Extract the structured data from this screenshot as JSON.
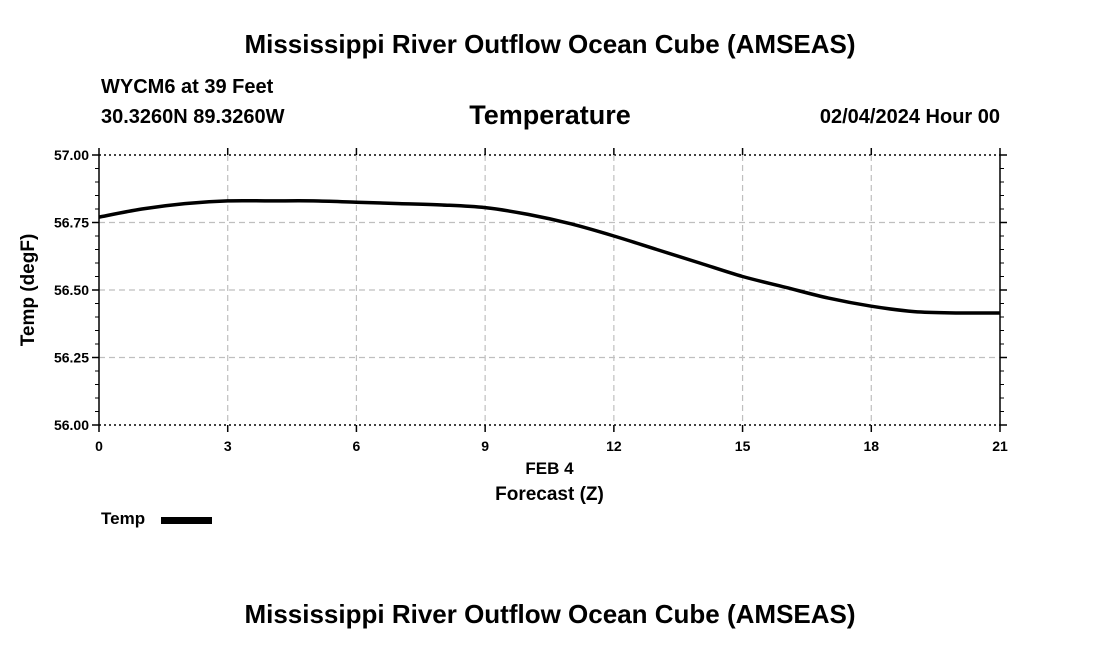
{
  "header": {
    "title": "Mississippi River Outflow Ocean Cube (AMSEAS)",
    "station": "WYCM6 at 39 Feet",
    "coords": "30.3260N  89.3260W",
    "variable": "Temperature",
    "datetime": "02/04/2024 Hour 00"
  },
  "footer": {
    "title": "Mississippi River Outflow Ocean Cube (AMSEAS)"
  },
  "legend": {
    "label": "Temp",
    "color": "#000000"
  },
  "chart_data": {
    "type": "line",
    "ylabel": "Temp (degF)",
    "xlabel": "Forecast (Z)",
    "x_date_label": "FEB 4",
    "ylim": [
      56.0,
      57.0
    ],
    "xlim": [
      0,
      21
    ],
    "yticks": [
      "56.00",
      "56.25",
      "56.50",
      "56.75",
      "57.00"
    ],
    "xticks": [
      0,
      3,
      6,
      9,
      12,
      15,
      18,
      21
    ],
    "grid": true,
    "series": [
      {
        "name": "Temp",
        "color": "#000000",
        "x": [
          0,
          1,
          2,
          3,
          4,
          5,
          6,
          7,
          8,
          9,
          10,
          11,
          12,
          13,
          14,
          15,
          16,
          17,
          18,
          19,
          20,
          21
        ],
        "y": [
          56.77,
          56.8,
          56.82,
          56.83,
          56.83,
          56.83,
          56.825,
          56.82,
          56.815,
          56.805,
          56.78,
          56.745,
          56.7,
          56.65,
          56.6,
          56.55,
          56.51,
          56.47,
          56.44,
          56.42,
          56.415,
          56.415
        ]
      }
    ]
  }
}
